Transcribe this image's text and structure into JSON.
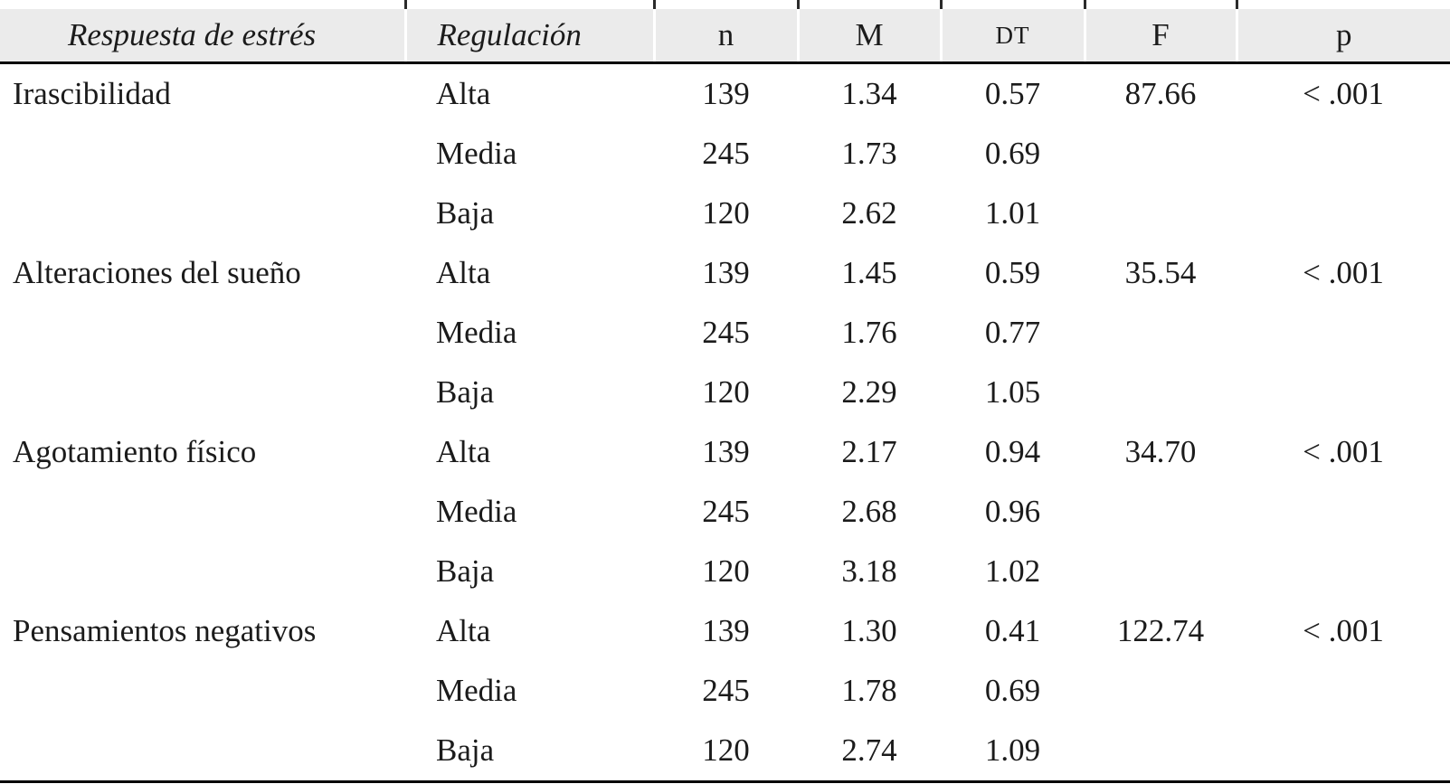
{
  "table": {
    "headers": {
      "respuesta": "Respuesta de estrés",
      "regulacion": "Regulación",
      "n": "n",
      "m": "M",
      "dt": "DT",
      "f": "F",
      "p": "p"
    },
    "rows": [
      {
        "respuesta": "Irascibilidad",
        "regulacion": "Alta",
        "n": "139",
        "m": "1.34",
        "dt": "0.57",
        "f": "87.66",
        "p": "< .001"
      },
      {
        "respuesta": "",
        "regulacion": "Media",
        "n": "245",
        "m": "1.73",
        "dt": "0.69",
        "f": "",
        "p": ""
      },
      {
        "respuesta": "",
        "regulacion": "Baja",
        "n": "120",
        "m": "2.62",
        "dt": "1.01",
        "f": "",
        "p": ""
      },
      {
        "respuesta": "Alteraciones del sueño",
        "regulacion": "Alta",
        "n": "139",
        "m": "1.45",
        "dt": "0.59",
        "f": "35.54",
        "p": "< .001"
      },
      {
        "respuesta": "",
        "regulacion": "Media",
        "n": "245",
        "m": "1.76",
        "dt": "0.77",
        "f": "",
        "p": ""
      },
      {
        "respuesta": "",
        "regulacion": "Baja",
        "n": "120",
        "m": "2.29",
        "dt": "1.05",
        "f": "",
        "p": ""
      },
      {
        "respuesta": "Agotamiento físico",
        "regulacion": "Alta",
        "n": "139",
        "m": "2.17",
        "dt": "0.94",
        "f": "34.70",
        "p": "< .001"
      },
      {
        "respuesta": "",
        "regulacion": "Media",
        "n": "245",
        "m": "2.68",
        "dt": "0.96",
        "f": "",
        "p": ""
      },
      {
        "respuesta": "",
        "regulacion": "Baja",
        "n": "120",
        "m": "3.18",
        "dt": "1.02",
        "f": "",
        "p": ""
      },
      {
        "respuesta": "Pensamientos negativos",
        "regulacion": "Alta",
        "n": "139",
        "m": "1.30",
        "dt": "0.41",
        "f": "122.74",
        "p": "< .001"
      },
      {
        "respuesta": "",
        "regulacion": "Media",
        "n": "245",
        "m": "1.78",
        "dt": "0.69",
        "f": "",
        "p": ""
      },
      {
        "respuesta": "",
        "regulacion": "Baja",
        "n": "120",
        "m": "2.74",
        "dt": "1.09",
        "f": "",
        "p": ""
      }
    ],
    "colors": {
      "header_bg": "#ebebeb",
      "rule": "#000000",
      "text": "#1b1b1b"
    }
  }
}
